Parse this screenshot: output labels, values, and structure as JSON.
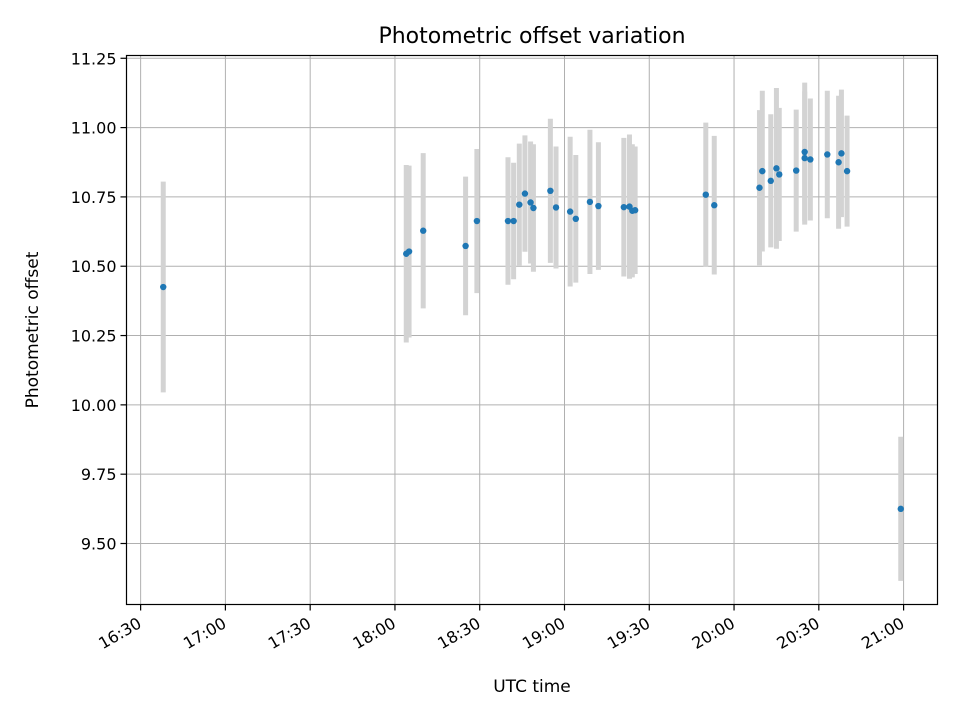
{
  "chart_data": {
    "type": "scatter",
    "title": "Photometric offset variation",
    "xlabel": "UTC time",
    "ylabel": "Photometric offset",
    "grid": true,
    "xlim": [
      "16:25",
      "21:12"
    ],
    "ylim": [
      9.28,
      11.26
    ],
    "x_ticks": [
      "16:30",
      "17:00",
      "17:30",
      "18:00",
      "18:30",
      "19:00",
      "19:30",
      "20:00",
      "20:30",
      "21:00"
    ],
    "y_ticks": [
      9.5,
      9.75,
      10.0,
      10.25,
      10.5,
      10.75,
      11.0,
      11.25
    ],
    "y_tick_labels": [
      "9.50",
      "9.75",
      "10.00",
      "10.25",
      "10.50",
      "10.75",
      "11.00",
      "11.25"
    ],
    "series": [
      {
        "color": "#1f77b4",
        "error_color": "#d3d3d3",
        "points": [
          {
            "x": "16:38",
            "y": 10.425,
            "err": 0.38
          },
          {
            "x": "18:04",
            "y": 10.545,
            "err": 0.32
          },
          {
            "x": "18:05",
            "y": 10.553,
            "err": 0.31
          },
          {
            "x": "18:10",
            "y": 10.628,
            "err": 0.28
          },
          {
            "x": "18:25",
            "y": 10.573,
            "err": 0.25
          },
          {
            "x": "18:29",
            "y": 10.663,
            "err": 0.26
          },
          {
            "x": "18:40",
            "y": 10.663,
            "err": 0.23
          },
          {
            "x": "18:42",
            "y": 10.663,
            "err": 0.21
          },
          {
            "x": "18:44",
            "y": 10.722,
            "err": 0.22
          },
          {
            "x": "18:46",
            "y": 10.762,
            "err": 0.21
          },
          {
            "x": "18:48",
            "y": 10.73,
            "err": 0.22
          },
          {
            "x": "18:49",
            "y": 10.71,
            "err": 0.23
          },
          {
            "x": "18:55",
            "y": 10.772,
            "err": 0.26
          },
          {
            "x": "18:57",
            "y": 10.712,
            "err": 0.22
          },
          {
            "x": "19:02",
            "y": 10.697,
            "err": 0.27
          },
          {
            "x": "19:04",
            "y": 10.671,
            "err": 0.23
          },
          {
            "x": "19:09",
            "y": 10.732,
            "err": 0.26
          },
          {
            "x": "19:12",
            "y": 10.717,
            "err": 0.23
          },
          {
            "x": "19:21",
            "y": 10.713,
            "err": 0.25
          },
          {
            "x": "19:23",
            "y": 10.715,
            "err": 0.26
          },
          {
            "x": "19:24",
            "y": 10.7,
            "err": 0.24
          },
          {
            "x": "19:25",
            "y": 10.702,
            "err": 0.23
          },
          {
            "x": "19:50",
            "y": 10.758,
            "err": 0.26
          },
          {
            "x": "19:53",
            "y": 10.72,
            "err": 0.25
          },
          {
            "x": "20:09",
            "y": 10.783,
            "err": 0.28
          },
          {
            "x": "20:10",
            "y": 10.843,
            "err": 0.29
          },
          {
            "x": "20:13",
            "y": 10.808,
            "err": 0.24
          },
          {
            "x": "20:15",
            "y": 10.853,
            "err": 0.29
          },
          {
            "x": "20:16",
            "y": 10.831,
            "err": 0.24
          },
          {
            "x": "20:22",
            "y": 10.845,
            "err": 0.22
          },
          {
            "x": "20:25",
            "y": 10.89,
            "err": 0.24
          },
          {
            "x": "20:25",
            "y": 10.912,
            "err": 0.25
          },
          {
            "x": "20:27",
            "y": 10.885,
            "err": 0.22
          },
          {
            "x": "20:33",
            "y": 10.903,
            "err": 0.23
          },
          {
            "x": "20:37",
            "y": 10.875,
            "err": 0.24
          },
          {
            "x": "20:38",
            "y": 10.907,
            "err": 0.23
          },
          {
            "x": "20:40",
            "y": 10.843,
            "err": 0.2
          },
          {
            "x": "20:59",
            "y": 9.625,
            "err": 0.26
          }
        ]
      }
    ]
  }
}
